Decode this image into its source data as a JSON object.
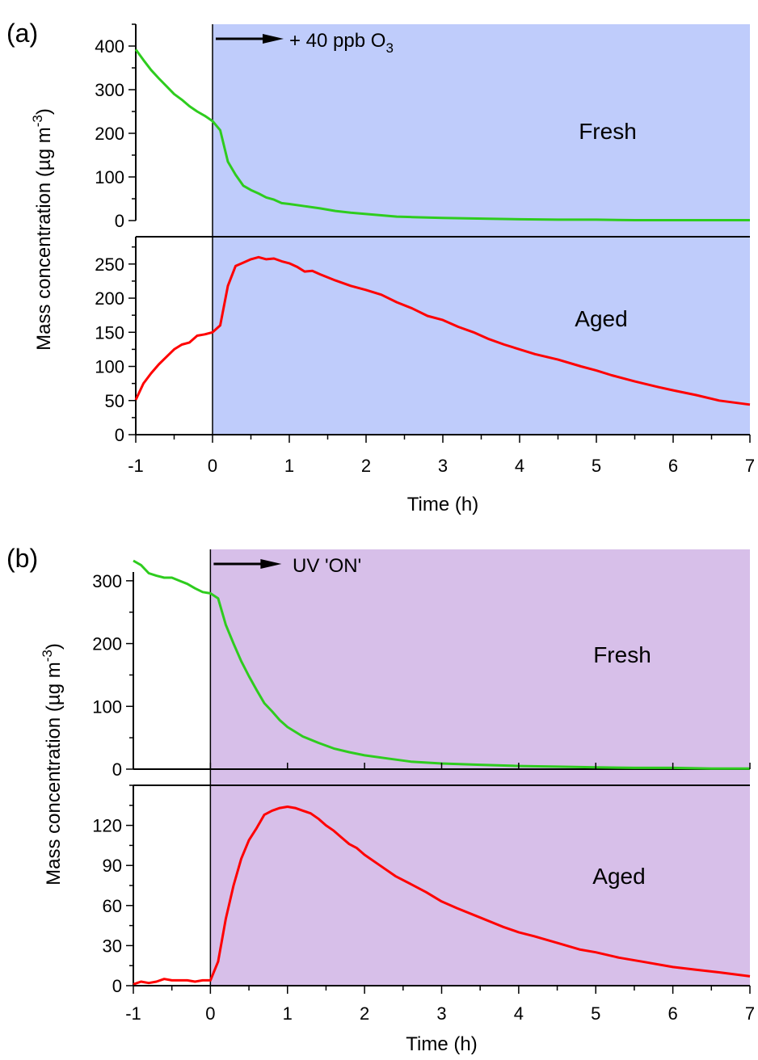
{
  "chart_data": [
    {
      "panel_label": "(a)",
      "type": "line",
      "xlabel": "Time (h)",
      "ylabel": "Mass concentration (µg m",
      "ylabel_sup": "-3",
      "ylabel_tail": ")",
      "xlim": [
        -1,
        7
      ],
      "xticks": [
        "-1",
        "0",
        "1",
        "2",
        "3",
        "4",
        "5",
        "6",
        "7"
      ],
      "shade": {
        "from": 0,
        "to": 7,
        "color": "#bfccfb"
      },
      "annotation": {
        "text": "+ 40 ppb O",
        "sub": "3",
        "x": 0
      },
      "colors": {
        "fresh": "#2ecc1e",
        "aged": "#ff0000"
      },
      "subplots": [
        {
          "name": "Fresh",
          "ylim": [
            0,
            450
          ],
          "yticks": [
            "0",
            "100",
            "200",
            "300",
            "400"
          ],
          "x": [
            -1.0,
            -0.9,
            -0.8,
            -0.7,
            -0.6,
            -0.5,
            -0.4,
            -0.3,
            -0.2,
            -0.1,
            0.0,
            0.1,
            0.2,
            0.3,
            0.4,
            0.5,
            0.6,
            0.7,
            0.8,
            0.9,
            1.0,
            1.2,
            1.4,
            1.6,
            1.8,
            2.0,
            2.2,
            2.4,
            2.6,
            2.8,
            3.0,
            3.3,
            3.6,
            4.0,
            4.5,
            5.0,
            5.5,
            6.0,
            6.5,
            7.0
          ],
          "values": [
            392,
            368,
            345,
            326,
            308,
            290,
            277,
            262,
            250,
            240,
            228,
            207,
            135,
            105,
            80,
            70,
            62,
            53,
            48,
            40,
            38,
            33,
            28,
            22,
            18,
            15,
            12,
            9,
            8,
            7,
            6,
            5,
            4,
            3,
            2,
            2,
            1,
            1,
            1,
            1
          ]
        },
        {
          "name": "Aged",
          "ylim": [
            0,
            290
          ],
          "yticks": [
            "0",
            "50",
            "100",
            "150",
            "200",
            "250"
          ],
          "x": [
            -1.0,
            -0.9,
            -0.8,
            -0.7,
            -0.6,
            -0.5,
            -0.4,
            -0.3,
            -0.2,
            -0.1,
            0.0,
            0.1,
            0.2,
            0.3,
            0.4,
            0.5,
            0.6,
            0.7,
            0.8,
            0.9,
            1.0,
            1.1,
            1.2,
            1.3,
            1.4,
            1.6,
            1.8,
            2.0,
            2.2,
            2.4,
            2.6,
            2.8,
            3.0,
            3.2,
            3.4,
            3.6,
            3.8,
            4.0,
            4.2,
            4.5,
            4.8,
            5.0,
            5.2,
            5.5,
            5.8,
            6.0,
            6.3,
            6.6,
            7.0
          ],
          "values": [
            51,
            75,
            90,
            103,
            114,
            125,
            132,
            135,
            145,
            147,
            150,
            160,
            218,
            247,
            252,
            257,
            260,
            257,
            258,
            254,
            251,
            246,
            239,
            240,
            235,
            226,
            218,
            212,
            205,
            194,
            185,
            174,
            168,
            158,
            150,
            140,
            132,
            125,
            118,
            110,
            100,
            94,
            87,
            78,
            70,
            65,
            58,
            50,
            44
          ]
        }
      ]
    },
    {
      "panel_label": "(b)",
      "type": "line",
      "xlabel": "Time (h)",
      "ylabel": "Mass concentration (µg m",
      "ylabel_sup": "-3",
      "ylabel_tail": ")",
      "xlim": [
        -1,
        7
      ],
      "xticks": [
        "-1",
        "0",
        "1",
        "2",
        "3",
        "4",
        "5",
        "6",
        "7"
      ],
      "shade": {
        "from": 0,
        "to": 7,
        "color": "#d7bfe9"
      },
      "annotation": {
        "text": "UV 'ON'",
        "sub": "",
        "x": 0
      },
      "colors": {
        "fresh": "#2ecc1e",
        "aged": "#ff0000"
      },
      "subplots": [
        {
          "name": "Fresh",
          "ylim": [
            0,
            350
          ],
          "yticks": [
            "0",
            "100",
            "200",
            "300"
          ],
          "x": [
            -1.0,
            -0.9,
            -0.8,
            -0.7,
            -0.6,
            -0.5,
            -0.4,
            -0.3,
            -0.2,
            -0.1,
            0.0,
            0.1,
            0.2,
            0.3,
            0.4,
            0.5,
            0.6,
            0.7,
            0.8,
            0.9,
            1.0,
            1.2,
            1.4,
            1.6,
            1.8,
            2.0,
            2.3,
            2.6,
            3.0,
            3.5,
            4.0,
            4.5,
            5.0,
            5.5,
            6.0,
            6.5,
            7.0
          ],
          "values": [
            332,
            325,
            312,
            308,
            305,
            305,
            300,
            295,
            288,
            282,
            280,
            272,
            230,
            200,
            172,
            148,
            126,
            105,
            92,
            78,
            67,
            52,
            42,
            33,
            27,
            22,
            17,
            12,
            9,
            7,
            5,
            4,
            3,
            2,
            2,
            1,
            1
          ]
        },
        {
          "name": "Aged",
          "ylim": [
            0,
            150
          ],
          "yticks": [
            "0",
            "30",
            "60",
            "90",
            "120"
          ],
          "x": [
            -1.0,
            -0.9,
            -0.8,
            -0.7,
            -0.6,
            -0.5,
            -0.4,
            -0.3,
            -0.2,
            -0.1,
            0.0,
            0.1,
            0.2,
            0.3,
            0.4,
            0.5,
            0.6,
            0.7,
            0.8,
            0.9,
            1.0,
            1.1,
            1.2,
            1.3,
            1.4,
            1.5,
            1.6,
            1.7,
            1.8,
            1.9,
            2.0,
            2.2,
            2.4,
            2.6,
            2.8,
            3.0,
            3.2,
            3.5,
            3.8,
            4.0,
            4.2,
            4.5,
            4.8,
            5.0,
            5.3,
            5.6,
            6.0,
            6.3,
            6.6,
            7.0
          ],
          "values": [
            1,
            3,
            2,
            3,
            5,
            4,
            4,
            4,
            3,
            4,
            4,
            18,
            50,
            75,
            95,
            109,
            118,
            128,
            131,
            133,
            134,
            133,
            131,
            129,
            125,
            120,
            116,
            111,
            106,
            103,
            98,
            90,
            82,
            76,
            70,
            63,
            58,
            51,
            44,
            40,
            37,
            32,
            27,
            25,
            21,
            18,
            14,
            12,
            10,
            7
          ]
        }
      ]
    }
  ]
}
